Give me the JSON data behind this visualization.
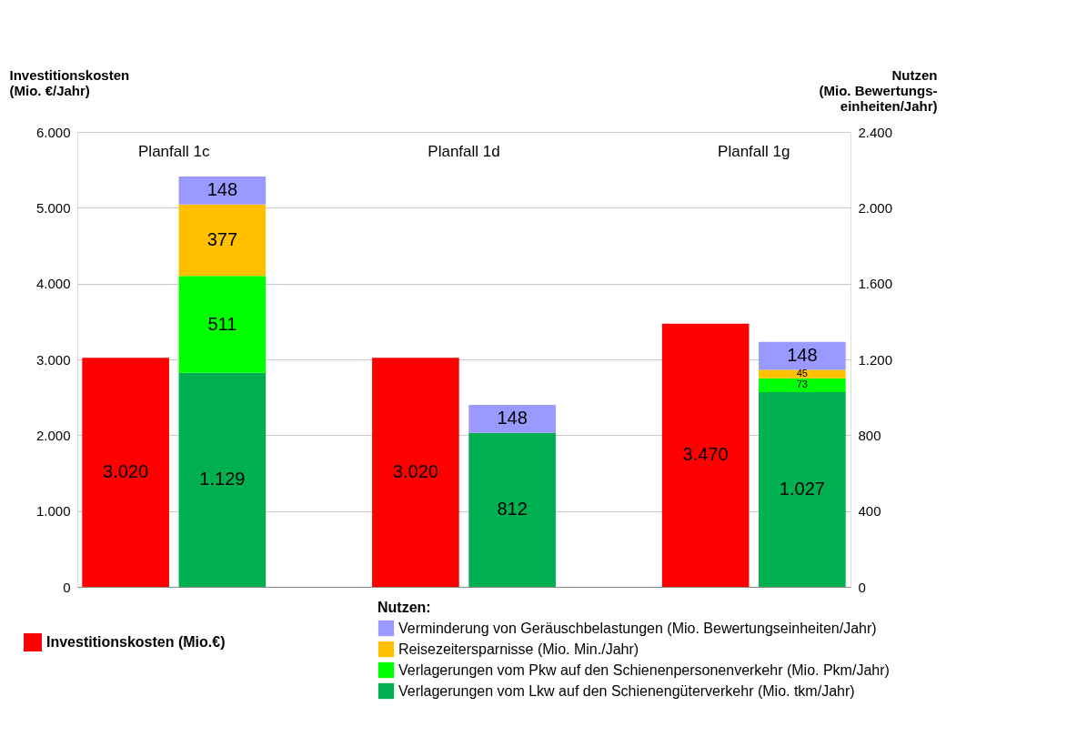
{
  "chart_data": {
    "type": "bar",
    "stacked": true,
    "categories": [
      null,
      null,
      null,
      null,
      null,
      null,
      null,
      null
    ],
    "ylabel": "Investitionskosten\n(Mio. €/Jahr)",
    "y2label": "Nutzen\n(Mio. Bewertungs-\neinheiten/Jahr)",
    "legend_title": "Nutzen:",
    "ylim": [
      0,
      6000
    ],
    "yticks": [
      0,
      {
        "value": 1000,
        "label": "1.000"
      },
      {
        "value": 2000,
        "label": "2.000"
      },
      {
        "value": 3000,
        "label": "3.000"
      },
      {
        "value": 4000,
        "label": "4.000"
      },
      {
        "value": 5000,
        "label": "5.000"
      },
      {
        "value": 6000,
        "label": "6.000"
      }
    ],
    "y2lim": [
      0,
      2400
    ],
    "y2ticks": [
      0,
      400,
      800,
      {
        "value": 1200,
        "label": "1.200"
      },
      {
        "value": 1600,
        "label": "1.600"
      },
      {
        "value": 2000,
        "label": "2.000"
      },
      {
        "value": 2400,
        "label": "2.400"
      }
    ],
    "grid": "y",
    "legend": "bottom",
    "annotations": [
      "Planfall 1c",
      "Planfall 1d",
      "Planfall 1g"
    ],
    "series": [
      {
        "name": "Investitionskosten (Mio.€)",
        "color": "#ff0000",
        "axis": "y",
        "values": [
          3020,
          null,
          null,
          3020,
          null,
          null,
          3470,
          null
        ],
        "value_labels": [
          "3.020",
          null,
          null,
          "3.020",
          null,
          null,
          "3.470",
          null
        ]
      },
      {
        "name": "Verlagerungen  vom Lkw auf den Schienengüterverkehr  (Mio. tkm/Jahr)",
        "color": "#00b050",
        "axis": "y2",
        "values": [
          null,
          1129,
          null,
          null,
          812,
          null,
          null,
          1027
        ],
        "value_labels": [
          null,
          "1.129",
          null,
          null,
          "812",
          null,
          null,
          "1.027"
        ]
      },
      {
        "name": "Verlagerungen  vom Pkw auf den Schienenpersonenverkehr  (Mio. Pkm/Jahr)",
        "color": "#00ff00",
        "axis": "y2",
        "values": [
          null,
          511,
          null,
          null,
          null,
          null,
          null,
          73
        ],
        "value_labels": [
          null,
          "511",
          null,
          null,
          null,
          null,
          null,
          "73"
        ]
      },
      {
        "name": "Reisezeitersparnisse  (Mio. Min./Jahr)",
        "color": "#ffc000",
        "axis": "y2",
        "values": [
          null,
          377,
          null,
          null,
          null,
          null,
          null,
          45
        ],
        "value_labels": [
          null,
          "377",
          null,
          null,
          null,
          null,
          null,
          "45"
        ]
      },
      {
        "name": "Verminderung  von Geräuschbelastungen  (Mio. Bewertungseinheiten/Jahr)",
        "color": "#9999ff",
        "axis": "y2",
        "values": [
          null,
          148,
          null,
          null,
          148,
          null,
          null,
          148
        ],
        "value_labels": [
          null,
          "148",
          null,
          null,
          "148",
          null,
          null,
          "148"
        ]
      }
    ]
  }
}
